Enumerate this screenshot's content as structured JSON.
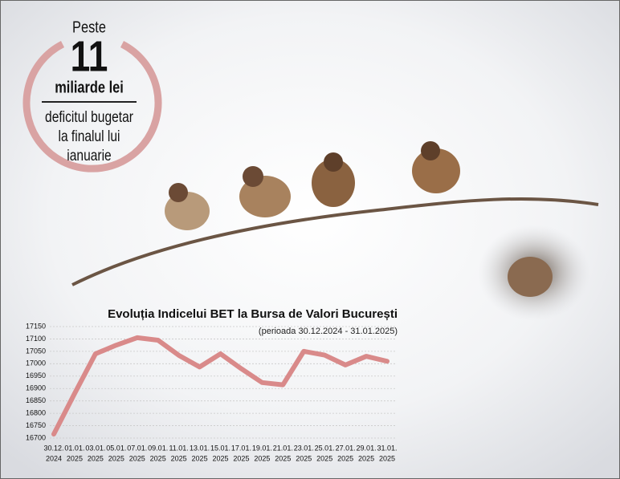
{
  "badge": {
    "lines": [
      "Peste",
      "11",
      "miliarde lei",
      "deficitul bugetar",
      "la finalul lui",
      "ianuarie"
    ]
  },
  "chart_data": {
    "type": "line",
    "title": "Evoluția Indicelui BET la Bursa de Valori București",
    "subtitle": "(perioada 30.12.2024 - 31.01.2025)",
    "categories": [
      [
        "30.12.",
        "2024"
      ],
      [
        "01.01.",
        "2025"
      ],
      [
        "03.01.",
        "2025"
      ],
      [
        "05.01.",
        "2025"
      ],
      [
        "07.01.",
        "2025"
      ],
      [
        "09.01.",
        "2025"
      ],
      [
        "11.01.",
        "2025"
      ],
      [
        "13.01.",
        "2025"
      ],
      [
        "15.01.",
        "2025"
      ],
      [
        "17.01.",
        "2025"
      ],
      [
        "19.01.",
        "2025"
      ],
      [
        "21.01.",
        "2025"
      ],
      [
        "23.01.",
        "2025"
      ],
      [
        "25.01.",
        "2025"
      ],
      [
        "27.01.",
        "2025"
      ],
      [
        "29.01.",
        "2025"
      ],
      [
        "31.01.",
        "2025"
      ]
    ],
    "values": [
      16716,
      16880,
      17040,
      17075,
      17105,
      17095,
      17034,
      16987,
      17040,
      16980,
      16924,
      16915,
      17050,
      17035,
      16995,
      17030,
      17010
    ],
    "color": "#d98a8a",
    "ylim": [
      16700,
      17150
    ],
    "yticks": [
      16700,
      16750,
      16800,
      16850,
      16900,
      16950,
      17000,
      17050,
      17100,
      17150
    ],
    "grid": true
  }
}
